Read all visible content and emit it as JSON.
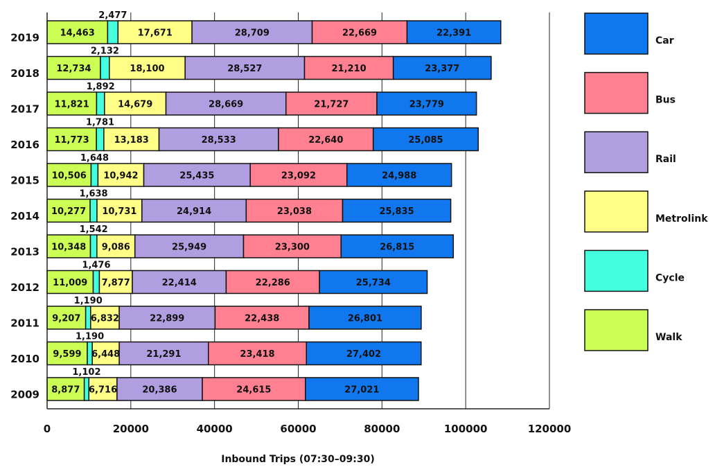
{
  "chart_data": {
    "type": "bar",
    "orientation": "horizontal",
    "stacked": true,
    "xlabel": "Inbound Trips (07:30–09:30)",
    "ylabel": "",
    "xlim": [
      0,
      120000
    ],
    "xticks": [
      "0",
      "20000",
      "40000",
      "60000",
      "80000",
      "100000",
      "120000"
    ],
    "grid": "vertical",
    "legend_position": "right",
    "categories": [
      "2019",
      "2018",
      "2017",
      "2016",
      "2015",
      "2014",
      "2013",
      "2012",
      "2011",
      "2010",
      "2009"
    ],
    "series": [
      {
        "name": "Walk",
        "color": "#ccff55",
        "values": [
          14463,
          12734,
          11821,
          11773,
          10506,
          10277,
          10348,
          11009,
          9207,
          9599,
          8877
        ],
        "labels": [
          "14,463",
          "12,734",
          "11,821",
          "11,773",
          "10,506",
          "10,277",
          "10,348",
          "11,009",
          "9,207",
          "9,599",
          "8,877"
        ]
      },
      {
        "name": "Cycle",
        "color": "#44ffdd",
        "values": [
          2477,
          2132,
          1892,
          1781,
          1648,
          1638,
          1542,
          1476,
          1190,
          1190,
          1102
        ],
        "labels": [
          "2,477",
          "2,132",
          "1,892",
          "1,781",
          "1,648",
          "1,638",
          "1,542",
          "1,476",
          "1,190",
          "1,190",
          "1,102"
        ]
      },
      {
        "name": "Metrolink",
        "color": "#ffff88",
        "values": [
          17671,
          18100,
          14679,
          13183,
          10942,
          10731,
          9086,
          7877,
          6832,
          6448,
          6716
        ],
        "labels": [
          "17,671",
          "18,100",
          "14,679",
          "13,183",
          "10,942",
          "10,731",
          "9,086",
          "7,877",
          "6,832",
          "6,448",
          "6,716"
        ]
      },
      {
        "name": "Rail",
        "color": "#b09ee0",
        "values": [
          28709,
          28527,
          28669,
          28533,
          25435,
          24914,
          25949,
          22414,
          22899,
          21291,
          20386
        ],
        "labels": [
          "28,709",
          "28,527",
          "28,669",
          "28,533",
          "25,435",
          "24,914",
          "25,949",
          "22,414",
          "22,899",
          "21,291",
          "20,386"
        ]
      },
      {
        "name": "Bus",
        "color": "#ff8090",
        "values": [
          22669,
          21210,
          21727,
          22640,
          23092,
          23038,
          23300,
          22286,
          22438,
          23418,
          24615
        ],
        "labels": [
          "22,669",
          "21,210",
          "21,727",
          "22,640",
          "23,092",
          "23,038",
          "23,300",
          "22,286",
          "22,438",
          "23,418",
          "24,615"
        ]
      },
      {
        "name": "Car",
        "color": "#1177ee",
        "values": [
          22391,
          23377,
          23779,
          25085,
          24988,
          25835,
          26815,
          25734,
          26801,
          27402,
          27021
        ],
        "labels": [
          "22,391",
          "23,377",
          "23,779",
          "25,085",
          "24,988",
          "25,835",
          "26,815",
          "25,734",
          "26,801",
          "27,402",
          "27,021"
        ]
      }
    ],
    "legend_order": [
      "Car",
      "Bus",
      "Rail",
      "Metrolink",
      "Cycle",
      "Walk"
    ]
  }
}
